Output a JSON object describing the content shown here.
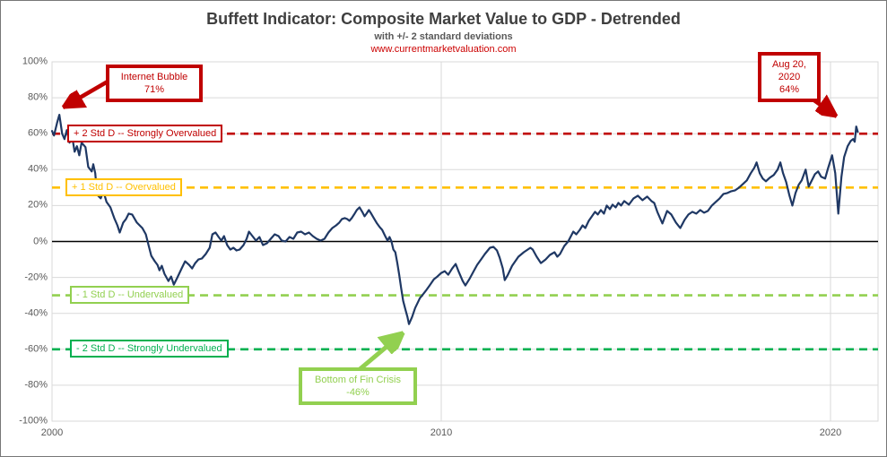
{
  "header": {
    "title": "Buffett Indicator: Composite Market Value to GDP - Detrended",
    "subtitle": "with +/- 2 standard deviations",
    "url": "www.currentmarketvaluation.com"
  },
  "colors": {
    "line": "#1F3864",
    "strongly_overvalued": "#C00000",
    "overvalued": "#FFC000",
    "undervalued": "#92D050",
    "strongly_undervalued": "#00B050",
    "grid": "#D9D9D9",
    "zero_line": "#000000",
    "axis_text": "#595959",
    "title_text": "#3F3F3F",
    "url_text": "#CC0000"
  },
  "chart_data": {
    "type": "line",
    "title": "Buffett Indicator: Composite Market Value to GDP - Detrended",
    "subtitle": "with +/- 2 standard deviations",
    "source": "www.currentmarketvaluation.com",
    "xlabel": "",
    "ylabel": "",
    "grid": true,
    "x_axis": {
      "min": 2000,
      "max": 2021.22,
      "ticks": [
        {
          "value": 2000,
          "label": "2000"
        },
        {
          "value": 2010,
          "label": "2010"
        },
        {
          "value": 2020,
          "label": "2020"
        }
      ],
      "vertical_gridlines": [
        2010,
        2020
      ]
    },
    "y_axis": {
      "min": -100,
      "max": 100,
      "ticks": [
        {
          "value": 100,
          "label": "100%"
        },
        {
          "value": 80,
          "label": "80%"
        },
        {
          "value": 60,
          "label": "60%"
        },
        {
          "value": 40,
          "label": "40%"
        },
        {
          "value": 20,
          "label": "20%"
        },
        {
          "value": 0,
          "label": "0%"
        },
        {
          "value": -20,
          "label": "-20%"
        },
        {
          "value": -40,
          "label": "-40%"
        },
        {
          "value": -60,
          "label": "-60%"
        },
        {
          "value": -80,
          "label": "-80%"
        },
        {
          "value": -100,
          "label": "-100%"
        }
      ],
      "gridline_values": [
        80,
        60,
        40,
        20,
        -20,
        -40,
        -60,
        -80
      ]
    },
    "zero_line": {
      "value": 0,
      "color": "#000000"
    },
    "reference_lines": [
      {
        "value": 60,
        "label": "+ 2 Std D -- Strongly Overvalued",
        "color": "#C00000",
        "style": "dashed"
      },
      {
        "value": 30,
        "label": "+ 1 Std D -- Overvalued",
        "color": "#FFC000",
        "style": "dashed"
      },
      {
        "value": -30,
        "label": "- 1 Std D -- Undervalued",
        "color": "#92D050",
        "style": "dashed"
      },
      {
        "value": -60,
        "label": "- 2 Std D -- Strongly Undervalued",
        "color": "#00B050",
        "style": "dashed"
      }
    ],
    "annotations": [
      {
        "id": "internet-bubble",
        "lines": [
          "Internet Bubble",
          "71%"
        ],
        "target_year": 2000.19,
        "target_value": 71,
        "color": "#C00000"
      },
      {
        "id": "aug-20-2020",
        "lines": [
          "Aug 20,",
          "2020",
          "64%"
        ],
        "target_year": 2020.66,
        "target_value": 64,
        "color": "#C00000"
      },
      {
        "id": "bottom-fin-crisis",
        "lines": [
          "Bottom of Fin Crisis",
          "-46%"
        ],
        "target_year": 2009.17,
        "target_value": -46,
        "color": "#92D050"
      }
    ],
    "series": [
      {
        "name": "Composite Market Value to GDP, detrended (%)",
        "color": "#1F3864",
        "points": [
          [
            2000.0,
            61.5
          ],
          [
            2000.05,
            59
          ],
          [
            2000.13,
            66
          ],
          [
            2000.19,
            70.5
          ],
          [
            2000.26,
            60
          ],
          [
            2000.32,
            57
          ],
          [
            2000.38,
            62
          ],
          [
            2000.45,
            55
          ],
          [
            2000.52,
            58
          ],
          [
            2000.58,
            50
          ],
          [
            2000.64,
            53
          ],
          [
            2000.7,
            48
          ],
          [
            2000.76,
            55
          ],
          [
            2000.86,
            52.5
          ],
          [
            2000.93,
            41.5
          ],
          [
            2001.02,
            39
          ],
          [
            2001.06,
            43
          ],
          [
            2001.11,
            38
          ],
          [
            2001.16,
            26
          ],
          [
            2001.25,
            24
          ],
          [
            2001.32,
            28
          ],
          [
            2001.4,
            22
          ],
          [
            2001.5,
            19
          ],
          [
            2001.6,
            13
          ],
          [
            2001.68,
            9
          ],
          [
            2001.74,
            5
          ],
          [
            2001.83,
            10.5
          ],
          [
            2001.9,
            12.5
          ],
          [
            2001.97,
            15.5
          ],
          [
            2002.06,
            15
          ],
          [
            2002.18,
            10.5
          ],
          [
            2002.25,
            9
          ],
          [
            2002.32,
            7.5
          ],
          [
            2002.41,
            4
          ],
          [
            2002.48,
            -2
          ],
          [
            2002.55,
            -8
          ],
          [
            2002.64,
            -11
          ],
          [
            2002.71,
            -13
          ],
          [
            2002.76,
            -16
          ],
          [
            2002.82,
            -13.5
          ],
          [
            2002.89,
            -18
          ],
          [
            2002.99,
            -22
          ],
          [
            2003.06,
            -19.5
          ],
          [
            2003.13,
            -24
          ],
          [
            2003.22,
            -20
          ],
          [
            2003.33,
            -15
          ],
          [
            2003.42,
            -11
          ],
          [
            2003.52,
            -13
          ],
          [
            2003.6,
            -15
          ],
          [
            2003.68,
            -12
          ],
          [
            2003.76,
            -10
          ],
          [
            2003.85,
            -9.5
          ],
          [
            2003.95,
            -7
          ],
          [
            2004.05,
            -3.5
          ],
          [
            2004.12,
            4
          ],
          [
            2004.2,
            5
          ],
          [
            2004.28,
            2.5
          ],
          [
            2004.35,
            0.5
          ],
          [
            2004.42,
            3
          ],
          [
            2004.5,
            -2
          ],
          [
            2004.58,
            -4.5
          ],
          [
            2004.66,
            -3.5
          ],
          [
            2004.74,
            -5
          ],
          [
            2004.82,
            -4.5
          ],
          [
            2004.92,
            -2
          ],
          [
            2005.0,
            1.5
          ],
          [
            2005.06,
            5.5
          ],
          [
            2005.15,
            3
          ],
          [
            2005.24,
            0.5
          ],
          [
            2005.33,
            2.5
          ],
          [
            2005.42,
            -2
          ],
          [
            2005.52,
            -1
          ],
          [
            2005.62,
            1.5
          ],
          [
            2005.72,
            4
          ],
          [
            2005.82,
            3
          ],
          [
            2005.9,
            0.5
          ],
          [
            2006.0,
            0
          ],
          [
            2006.1,
            2.5
          ],
          [
            2006.2,
            1.5
          ],
          [
            2006.3,
            5
          ],
          [
            2006.4,
            5.5
          ],
          [
            2006.5,
            4
          ],
          [
            2006.6,
            5
          ],
          [
            2006.7,
            3
          ],
          [
            2006.8,
            1.5
          ],
          [
            2006.9,
            0.5
          ],
          [
            2007.0,
            1.5
          ],
          [
            2007.1,
            5
          ],
          [
            2007.2,
            7.5
          ],
          [
            2007.3,
            9
          ],
          [
            2007.38,
            10.5
          ],
          [
            2007.45,
            12.5
          ],
          [
            2007.52,
            13
          ],
          [
            2007.58,
            12.5
          ],
          [
            2007.64,
            11.5
          ],
          [
            2007.7,
            13
          ],
          [
            2007.76,
            15
          ],
          [
            2007.83,
            17.5
          ],
          [
            2007.9,
            19
          ],
          [
            2007.97,
            16.5
          ],
          [
            2008.03,
            14
          ],
          [
            2008.08,
            15.5
          ],
          [
            2008.14,
            17.5
          ],
          [
            2008.2,
            15.5
          ],
          [
            2008.28,
            12.5
          ],
          [
            2008.35,
            10
          ],
          [
            2008.42,
            8
          ],
          [
            2008.48,
            6.5
          ],
          [
            2008.56,
            3
          ],
          [
            2008.62,
            0.5
          ],
          [
            2008.67,
            2.5
          ],
          [
            2008.72,
            0
          ],
          [
            2008.77,
            -4.5
          ],
          [
            2008.82,
            -6
          ],
          [
            2008.87,
            -12
          ],
          [
            2008.92,
            -18.5
          ],
          [
            2008.97,
            -26
          ],
          [
            2009.02,
            -33
          ],
          [
            2009.08,
            -38
          ],
          [
            2009.13,
            -42
          ],
          [
            2009.17,
            -46
          ],
          [
            2009.25,
            -42
          ],
          [
            2009.33,
            -37
          ],
          [
            2009.45,
            -31.5
          ],
          [
            2009.51,
            -30
          ],
          [
            2009.6,
            -27.5
          ],
          [
            2009.7,
            -24.5
          ],
          [
            2009.81,
            -21
          ],
          [
            2009.9,
            -19.5
          ],
          [
            2010.0,
            -17.5
          ],
          [
            2010.09,
            -16.5
          ],
          [
            2010.18,
            -18.5
          ],
          [
            2010.28,
            -15
          ],
          [
            2010.37,
            -12.5
          ],
          [
            2010.45,
            -17
          ],
          [
            2010.55,
            -22
          ],
          [
            2010.62,
            -24.5
          ],
          [
            2010.72,
            -21
          ],
          [
            2010.82,
            -17
          ],
          [
            2010.92,
            -13
          ],
          [
            2011.02,
            -10
          ],
          [
            2011.12,
            -7
          ],
          [
            2011.25,
            -3.5
          ],
          [
            2011.34,
            -3
          ],
          [
            2011.43,
            -5
          ],
          [
            2011.5,
            -9
          ],
          [
            2011.58,
            -15
          ],
          [
            2011.63,
            -21.5
          ],
          [
            2011.7,
            -19
          ],
          [
            2011.82,
            -13.5
          ],
          [
            2011.98,
            -8.5
          ],
          [
            2012.12,
            -6
          ],
          [
            2012.29,
            -3.5
          ],
          [
            2012.35,
            -4.5
          ],
          [
            2012.45,
            -8.5
          ],
          [
            2012.56,
            -12
          ],
          [
            2012.68,
            -10
          ],
          [
            2012.79,
            -7.5
          ],
          [
            2012.91,
            -6
          ],
          [
            2012.98,
            -8.5
          ],
          [
            2013.05,
            -7
          ],
          [
            2013.16,
            -2.5
          ],
          [
            2013.26,
            0
          ],
          [
            2013.39,
            5.5
          ],
          [
            2013.47,
            4
          ],
          [
            2013.56,
            6.5
          ],
          [
            2013.63,
            9
          ],
          [
            2013.7,
            7.5
          ],
          [
            2013.79,
            11.5
          ],
          [
            2013.87,
            14
          ],
          [
            2013.95,
            16.5
          ],
          [
            2014.02,
            15
          ],
          [
            2014.1,
            17.5
          ],
          [
            2014.18,
            15.5
          ],
          [
            2014.25,
            20
          ],
          [
            2014.33,
            18
          ],
          [
            2014.4,
            20.5
          ],
          [
            2014.48,
            19
          ],
          [
            2014.55,
            21.5
          ],
          [
            2014.62,
            20
          ],
          [
            2014.7,
            22.5
          ],
          [
            2014.82,
            20.5
          ],
          [
            2014.94,
            24
          ],
          [
            2015.05,
            25.5
          ],
          [
            2015.17,
            23
          ],
          [
            2015.29,
            25
          ],
          [
            2015.4,
            22.5
          ],
          [
            2015.47,
            21.5
          ],
          [
            2015.55,
            16.5
          ],
          [
            2015.68,
            10
          ],
          [
            2015.8,
            17
          ],
          [
            2015.91,
            15
          ],
          [
            2016.03,
            10.5
          ],
          [
            2016.14,
            7.5
          ],
          [
            2016.25,
            12
          ],
          [
            2016.35,
            15
          ],
          [
            2016.45,
            16.5
          ],
          [
            2016.55,
            15.5
          ],
          [
            2016.65,
            17.5
          ],
          [
            2016.75,
            16
          ],
          [
            2016.85,
            17
          ],
          [
            2016.95,
            20
          ],
          [
            2017.05,
            22
          ],
          [
            2017.15,
            24
          ],
          [
            2017.25,
            26.5
          ],
          [
            2017.35,
            27
          ],
          [
            2017.45,
            28
          ],
          [
            2017.55,
            28.5
          ],
          [
            2017.65,
            30
          ],
          [
            2017.75,
            32
          ],
          [
            2017.85,
            34
          ],
          [
            2017.95,
            38
          ],
          [
            2018.04,
            41
          ],
          [
            2018.1,
            44
          ],
          [
            2018.18,
            38
          ],
          [
            2018.26,
            35
          ],
          [
            2018.34,
            33.5
          ],
          [
            2018.44,
            35.5
          ],
          [
            2018.54,
            37
          ],
          [
            2018.64,
            40
          ],
          [
            2018.71,
            44
          ],
          [
            2018.78,
            38
          ],
          [
            2018.86,
            33
          ],
          [
            2018.94,
            26
          ],
          [
            2019.02,
            20
          ],
          [
            2019.1,
            27
          ],
          [
            2019.18,
            31.5
          ],
          [
            2019.26,
            34
          ],
          [
            2019.36,
            40
          ],
          [
            2019.44,
            30.5
          ],
          [
            2019.52,
            34
          ],
          [
            2019.6,
            37.5
          ],
          [
            2019.68,
            39
          ],
          [
            2019.76,
            36
          ],
          [
            2019.86,
            35
          ],
          [
            2019.94,
            41
          ],
          [
            2020.04,
            48
          ],
          [
            2020.12,
            38
          ],
          [
            2020.2,
            15.5
          ],
          [
            2020.28,
            36
          ],
          [
            2020.35,
            47
          ],
          [
            2020.44,
            53
          ],
          [
            2020.52,
            56
          ],
          [
            2020.58,
            57
          ],
          [
            2020.62,
            55.5
          ],
          [
            2020.66,
            64
          ],
          [
            2020.7,
            61
          ]
        ]
      }
    ]
  }
}
